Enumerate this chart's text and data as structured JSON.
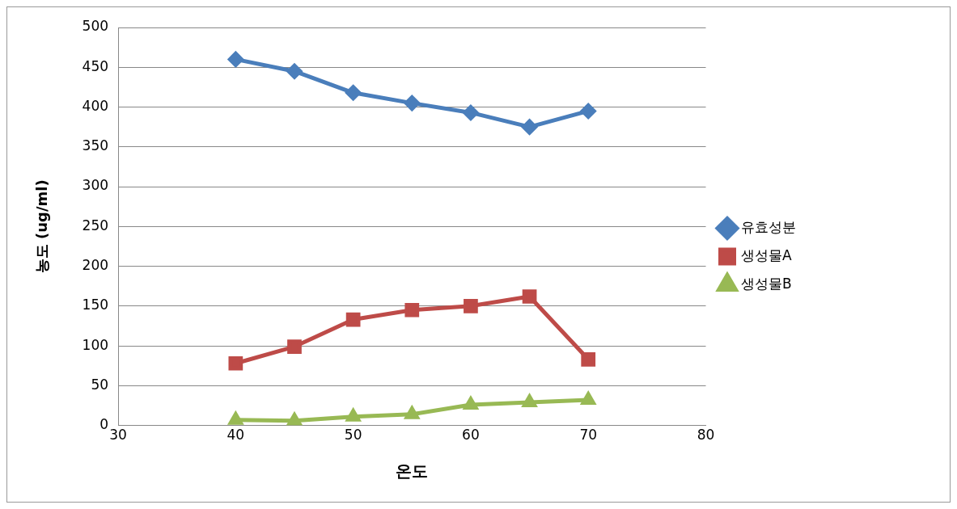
{
  "chart_data": {
    "type": "line",
    "xlabel": "온도",
    "ylabel": "농도 (ug/ml)",
    "x": [
      40,
      45,
      50,
      55,
      60,
      65,
      70
    ],
    "xlim": [
      30,
      80
    ],
    "xticks": [
      30,
      40,
      50,
      60,
      70,
      80
    ],
    "ylim": [
      0,
      500
    ],
    "yticks": [
      0,
      50,
      100,
      150,
      200,
      250,
      300,
      350,
      400,
      450,
      500
    ],
    "grid": "y",
    "legend": "right",
    "series": [
      {
        "name": "유효성분",
        "color": "#4a7ebb",
        "marker": "diamond",
        "values": [
          460,
          445,
          418,
          405,
          393,
          375,
          395
        ]
      },
      {
        "name": "생성물A",
        "color": "#be4b48",
        "marker": "square",
        "values": [
          78,
          99,
          133,
          145,
          150,
          162,
          83
        ]
      },
      {
        "name": "생성물B",
        "color": "#98b954",
        "marker": "triangle",
        "values": [
          7,
          6,
          11,
          14,
          26,
          29,
          32
        ]
      }
    ]
  }
}
